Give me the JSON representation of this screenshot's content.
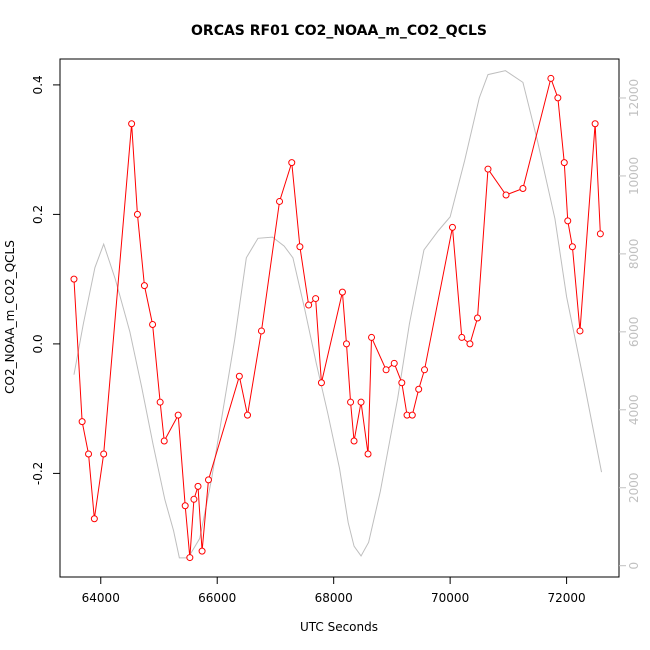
{
  "chart_data": {
    "type": "line",
    "title": "ORCAS RF01 CO2_NOAA_m_CO2_QCLS",
    "xlabel": "UTC Seconds",
    "ylabel": "CO2_NOAA_m_CO2_QCLS",
    "xlim": [
      63300,
      72900
    ],
    "ylim": [
      -0.36,
      0.44
    ],
    "x_ticks": [
      64000,
      66000,
      68000,
      70000,
      72000
    ],
    "y_ticks": [
      -0.2,
      0.0,
      0.2,
      0.4
    ],
    "y2_ticks": [
      0,
      2000,
      4000,
      6000,
      8000,
      10000,
      12000
    ],
    "y2lim": [
      -290,
      13000
    ],
    "series": [
      {
        "color": "#ff0000",
        "marker": "open-circle",
        "points": [
          [
            63540,
            0.1
          ],
          [
            63680,
            -0.12
          ],
          [
            63790,
            -0.17
          ],
          [
            63890,
            -0.27
          ],
          [
            64050,
            -0.17
          ],
          [
            64530,
            0.34
          ],
          [
            64630,
            0.2
          ],
          [
            64750,
            0.09
          ],
          [
            64890,
            0.03
          ],
          [
            65020,
            -0.09
          ],
          [
            65090,
            -0.15
          ],
          [
            65330,
            -0.11
          ],
          [
            65450,
            -0.25
          ],
          [
            65530,
            -0.33
          ],
          [
            65600,
            -0.24
          ],
          [
            65670,
            -0.22
          ],
          [
            65740,
            -0.32
          ],
          [
            65850,
            -0.21
          ],
          [
            66380,
            -0.05
          ],
          [
            66520,
            -0.11
          ],
          [
            66760,
            0.02
          ],
          [
            67070,
            0.22
          ],
          [
            67280,
            0.28
          ],
          [
            67420,
            0.15
          ],
          [
            67570,
            0.06
          ],
          [
            67690,
            0.07
          ],
          [
            67790,
            -0.06
          ],
          [
            68150,
            0.08
          ],
          [
            68220,
            0.0
          ],
          [
            68290,
            -0.09
          ],
          [
            68350,
            -0.15
          ],
          [
            68470,
            -0.09
          ],
          [
            68590,
            -0.17
          ],
          [
            68650,
            0.01
          ],
          [
            68900,
            -0.04
          ],
          [
            69040,
            -0.03
          ],
          [
            69170,
            -0.06
          ],
          [
            69260,
            -0.11
          ],
          [
            69350,
            -0.11
          ],
          [
            69460,
            -0.07
          ],
          [
            69560,
            -0.04
          ],
          [
            70040,
            0.18
          ],
          [
            70200,
            0.01
          ],
          [
            70340,
            0.0
          ],
          [
            70470,
            0.04
          ],
          [
            70650,
            0.27
          ],
          [
            70960,
            0.23
          ],
          [
            71250,
            0.24
          ],
          [
            71730,
            0.41
          ],
          [
            71850,
            0.38
          ],
          [
            71960,
            0.28
          ],
          [
            72020,
            0.19
          ],
          [
            72100,
            0.15
          ],
          [
            72230,
            0.02
          ],
          [
            72490,
            0.34
          ],
          [
            72580,
            0.17
          ]
        ]
      },
      {
        "color": "#bebebe",
        "axis": "right",
        "points": [
          [
            63540,
            4900
          ],
          [
            63700,
            6200
          ],
          [
            63900,
            7650
          ],
          [
            64050,
            8250
          ],
          [
            64250,
            7350
          ],
          [
            64500,
            6000
          ],
          [
            64700,
            4600
          ],
          [
            64900,
            3100
          ],
          [
            65100,
            1700
          ],
          [
            65250,
            900
          ],
          [
            65350,
            200
          ],
          [
            65500,
            200
          ],
          [
            65700,
            700
          ],
          [
            65900,
            2200
          ],
          [
            66100,
            4000
          ],
          [
            66300,
            5800
          ],
          [
            66500,
            7900
          ],
          [
            66700,
            8400
          ],
          [
            66950,
            8430
          ],
          [
            67150,
            8200
          ],
          [
            67300,
            7900
          ],
          [
            67500,
            6600
          ],
          [
            67700,
            5200
          ],
          [
            67900,
            3900
          ],
          [
            68100,
            2500
          ],
          [
            68250,
            1100
          ],
          [
            68350,
            500
          ],
          [
            68470,
            250
          ],
          [
            68600,
            600
          ],
          [
            68800,
            1900
          ],
          [
            69100,
            4300
          ],
          [
            69300,
            6200
          ],
          [
            69550,
            8100
          ],
          [
            69800,
            8600
          ],
          [
            70000,
            8950
          ],
          [
            70250,
            10400
          ],
          [
            70500,
            12000
          ],
          [
            70650,
            12600
          ],
          [
            70950,
            12700
          ],
          [
            71250,
            12400
          ],
          [
            71500,
            10900
          ],
          [
            71800,
            8900
          ],
          [
            72000,
            6900
          ],
          [
            72300,
            4700
          ],
          [
            72600,
            2400
          ]
        ]
      }
    ]
  }
}
